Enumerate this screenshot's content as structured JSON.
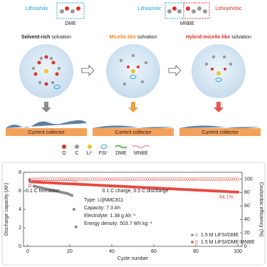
{
  "diagram": {
    "molecules": [
      {
        "label": "DME",
        "tags": [
          "Lithiophilic"
        ]
      },
      {
        "label": "MNBE",
        "tags": [
          "Lithiophilic",
          "Lithiophobic"
        ]
      }
    ],
    "panels": [
      {
        "highlight": "Solvent-rich",
        "rest": " solvation",
        "substrate": "Current collector"
      },
      {
        "highlight": "Micelle-like",
        "rest": " solvation",
        "substrate": "Current collector"
      },
      {
        "highlight": "Hybrid-micelle-like",
        "rest": " solvation",
        "substrate": "Current collector"
      }
    ],
    "legend": [
      "O",
      "C",
      "Li⁺",
      "FSI⁻",
      "DME",
      "MNBE"
    ]
  },
  "chart_data": {
    "type": "scatter",
    "xlabel": "Cycle number",
    "ylabel": "Discharge capacity (Ah)",
    "y2label": "Coulombic efficiency (%)",
    "annotations": [
      "0.1 C formation",
      "0.1 C charge, 0.5 C discharge",
      "Type: Li||NMC811",
      "Capacity: 7.3 Ah",
      "Electrolyte: 1.38 g Ah⁻¹",
      "Energy density: 503.7 Wh kg⁻¹",
      "84.1%"
    ],
    "xlim": [
      -2,
      102
    ],
    "xticks": [
      0,
      20,
      40,
      60,
      80,
      100
    ],
    "ylim": [
      0,
      8
    ],
    "yticks": [
      0,
      2,
      4,
      6,
      8
    ],
    "y2lim": [
      0,
      110
    ],
    "y2ticks": [
      0,
      20,
      40,
      60,
      80,
      100
    ],
    "x": [
      1,
      2,
      3,
      4,
      5,
      6,
      7,
      8,
      9,
      10,
      11,
      12,
      13,
      14,
      15,
      16,
      17,
      18,
      19,
      20,
      21,
      22,
      23,
      24,
      25,
      26,
      27,
      28,
      29,
      30,
      31,
      32,
      33,
      34,
      35,
      36,
      37,
      38,
      39,
      40,
      41,
      42,
      43,
      44,
      45,
      46,
      47,
      48,
      49,
      50,
      51,
      52,
      53,
      54,
      55,
      56,
      57,
      58,
      59,
      60,
      61,
      62,
      63,
      64,
      65,
      66,
      67,
      68,
      69,
      70,
      71,
      72,
      73,
      74,
      75,
      76,
      77,
      78,
      79,
      80,
      81,
      82,
      83,
      84,
      85,
      86,
      87,
      88,
      89,
      90,
      91,
      92,
      93,
      94,
      95,
      96,
      97,
      98,
      99,
      100
    ],
    "series": [
      {
        "name": "1.5 M LiFSI/DME",
        "color": "#8c8c8c",
        "values": [
          7.0,
          6.95,
          6.5,
          6.45,
          6.4,
          6.35,
          6.3,
          6.25,
          6.2,
          6.15,
          6.1,
          6.05,
          6.0,
          5.95,
          5.9,
          5.85,
          5.8,
          5.75,
          5.7,
          5.6,
          5.5,
          4.0,
          2.1,
          null,
          null,
          null,
          null,
          null,
          null,
          null,
          null,
          null,
          null,
          null,
          null,
          null,
          null,
          null,
          null,
          null,
          null,
          null,
          null,
          null,
          null,
          null,
          null,
          null,
          null,
          null,
          null,
          null,
          null,
          null,
          null,
          null,
          null,
          null,
          null,
          null,
          null,
          null,
          null,
          null,
          null,
          null,
          null,
          null,
          null,
          null,
          null,
          null,
          null,
          null,
          null,
          null,
          null,
          null,
          null,
          null,
          null,
          null,
          null,
          null,
          null,
          null,
          null,
          null,
          null,
          null,
          null,
          null,
          null,
          null,
          null,
          null,
          null,
          null,
          null,
          null
        ]
      },
      {
        "name": "1.5 M LiFSI/DME-MNBE",
        "color": "#e8473f",
        "values": [
          7.2,
          7.15,
          6.95,
          6.94,
          6.93,
          6.92,
          6.9,
          6.89,
          6.88,
          6.87,
          6.86,
          6.85,
          6.84,
          6.83,
          6.81,
          6.8,
          6.79,
          6.78,
          6.77,
          6.76,
          6.75,
          6.74,
          6.72,
          6.71,
          6.7,
          6.69,
          6.68,
          6.67,
          6.66,
          6.65,
          6.63,
          6.62,
          6.61,
          6.6,
          6.59,
          6.58,
          6.57,
          6.56,
          6.54,
          6.53,
          6.52,
          6.51,
          6.5,
          6.49,
          6.48,
          6.47,
          6.45,
          6.44,
          6.43,
          6.42,
          6.41,
          6.4,
          6.39,
          6.38,
          6.36,
          6.35,
          6.34,
          6.33,
          6.32,
          6.31,
          6.3,
          6.29,
          6.27,
          6.26,
          6.25,
          6.24,
          6.23,
          6.22,
          6.21,
          6.2,
          6.18,
          6.17,
          6.16,
          6.15,
          6.14,
          6.13,
          6.12,
          6.11,
          6.09,
          6.08,
          6.07,
          6.06,
          6.05,
          6.04,
          6.03,
          6.02,
          6.0,
          5.99,
          5.98,
          5.97,
          5.96,
          5.95,
          5.94,
          5.93,
          5.91,
          5.9,
          5.89,
          5.88,
          5.87,
          5.86
        ]
      },
      {
        "color": "#8c8c8c",
        "axis": "y2",
        "values": [
          90,
          99,
          99.5,
          99.5,
          99.5,
          99.5,
          99.5,
          99.5,
          99.5,
          99.5,
          99.5,
          99.5,
          99.5,
          99.5,
          99.5,
          99.5,
          99.5,
          99.5,
          99.5,
          99.5,
          99.5,
          98,
          97,
          null,
          null,
          null,
          null,
          null,
          null,
          null,
          null,
          null,
          null,
          null,
          null,
          null,
          null,
          null,
          null,
          null,
          null,
          null,
          null,
          null,
          null,
          null,
          null,
          null,
          null,
          null,
          null,
          null,
          null,
          null,
          null,
          null,
          null,
          null,
          null,
          null,
          null,
          null,
          null,
          null,
          null,
          null,
          null,
          null,
          null,
          null,
          null,
          null,
          null,
          null,
          null,
          null,
          null,
          null,
          null,
          null,
          null,
          null,
          null,
          null,
          null,
          null,
          null,
          null,
          null,
          null,
          null,
          null,
          null,
          null,
          null,
          null,
          null,
          null,
          null,
          null
        ]
      },
      {
        "color": "#e8473f",
        "axis": "y2",
        "values": [
          91,
          99.5,
          99.9,
          99.9,
          99.9,
          99.9,
          99.9,
          99.9,
          99.9,
          99.9,
          99.9,
          99.9,
          99.9,
          99.9,
          99.9,
          99.9,
          99.9,
          99.9,
          99.9,
          99.9,
          99.9,
          99.9,
          99.9,
          99.9,
          99.9,
          99.9,
          99.9,
          99.9,
          99.9,
          99.9,
          99.9,
          99.9,
          99.9,
          99.9,
          99.9,
          99.9,
          99.9,
          99.9,
          99.9,
          99.9,
          99.9,
          99.9,
          99.9,
          99.9,
          99.9,
          99.9,
          99.9,
          99.9,
          99.9,
          99.9,
          99.9,
          99.9,
          99.9,
          99.9,
          99.9,
          99.9,
          99.9,
          99.9,
          99.9,
          99.9,
          99.9,
          99.9,
          99.9,
          99.9,
          99.9,
          99.9,
          99.9,
          99.9,
          99.9,
          99.9,
          99.9,
          99.9,
          99.9,
          99.9,
          99.9,
          99.9,
          99.9,
          99.9,
          99.9,
          99.9,
          99.9,
          99.9,
          99.9,
          99.9,
          99.9,
          99.9,
          99.9,
          99.9,
          99.9,
          99.9,
          99.9,
          99.9,
          99.9,
          99.9,
          99.9,
          99.9,
          99.9,
          99.9,
          99.9,
          99.9
        ]
      }
    ]
  }
}
